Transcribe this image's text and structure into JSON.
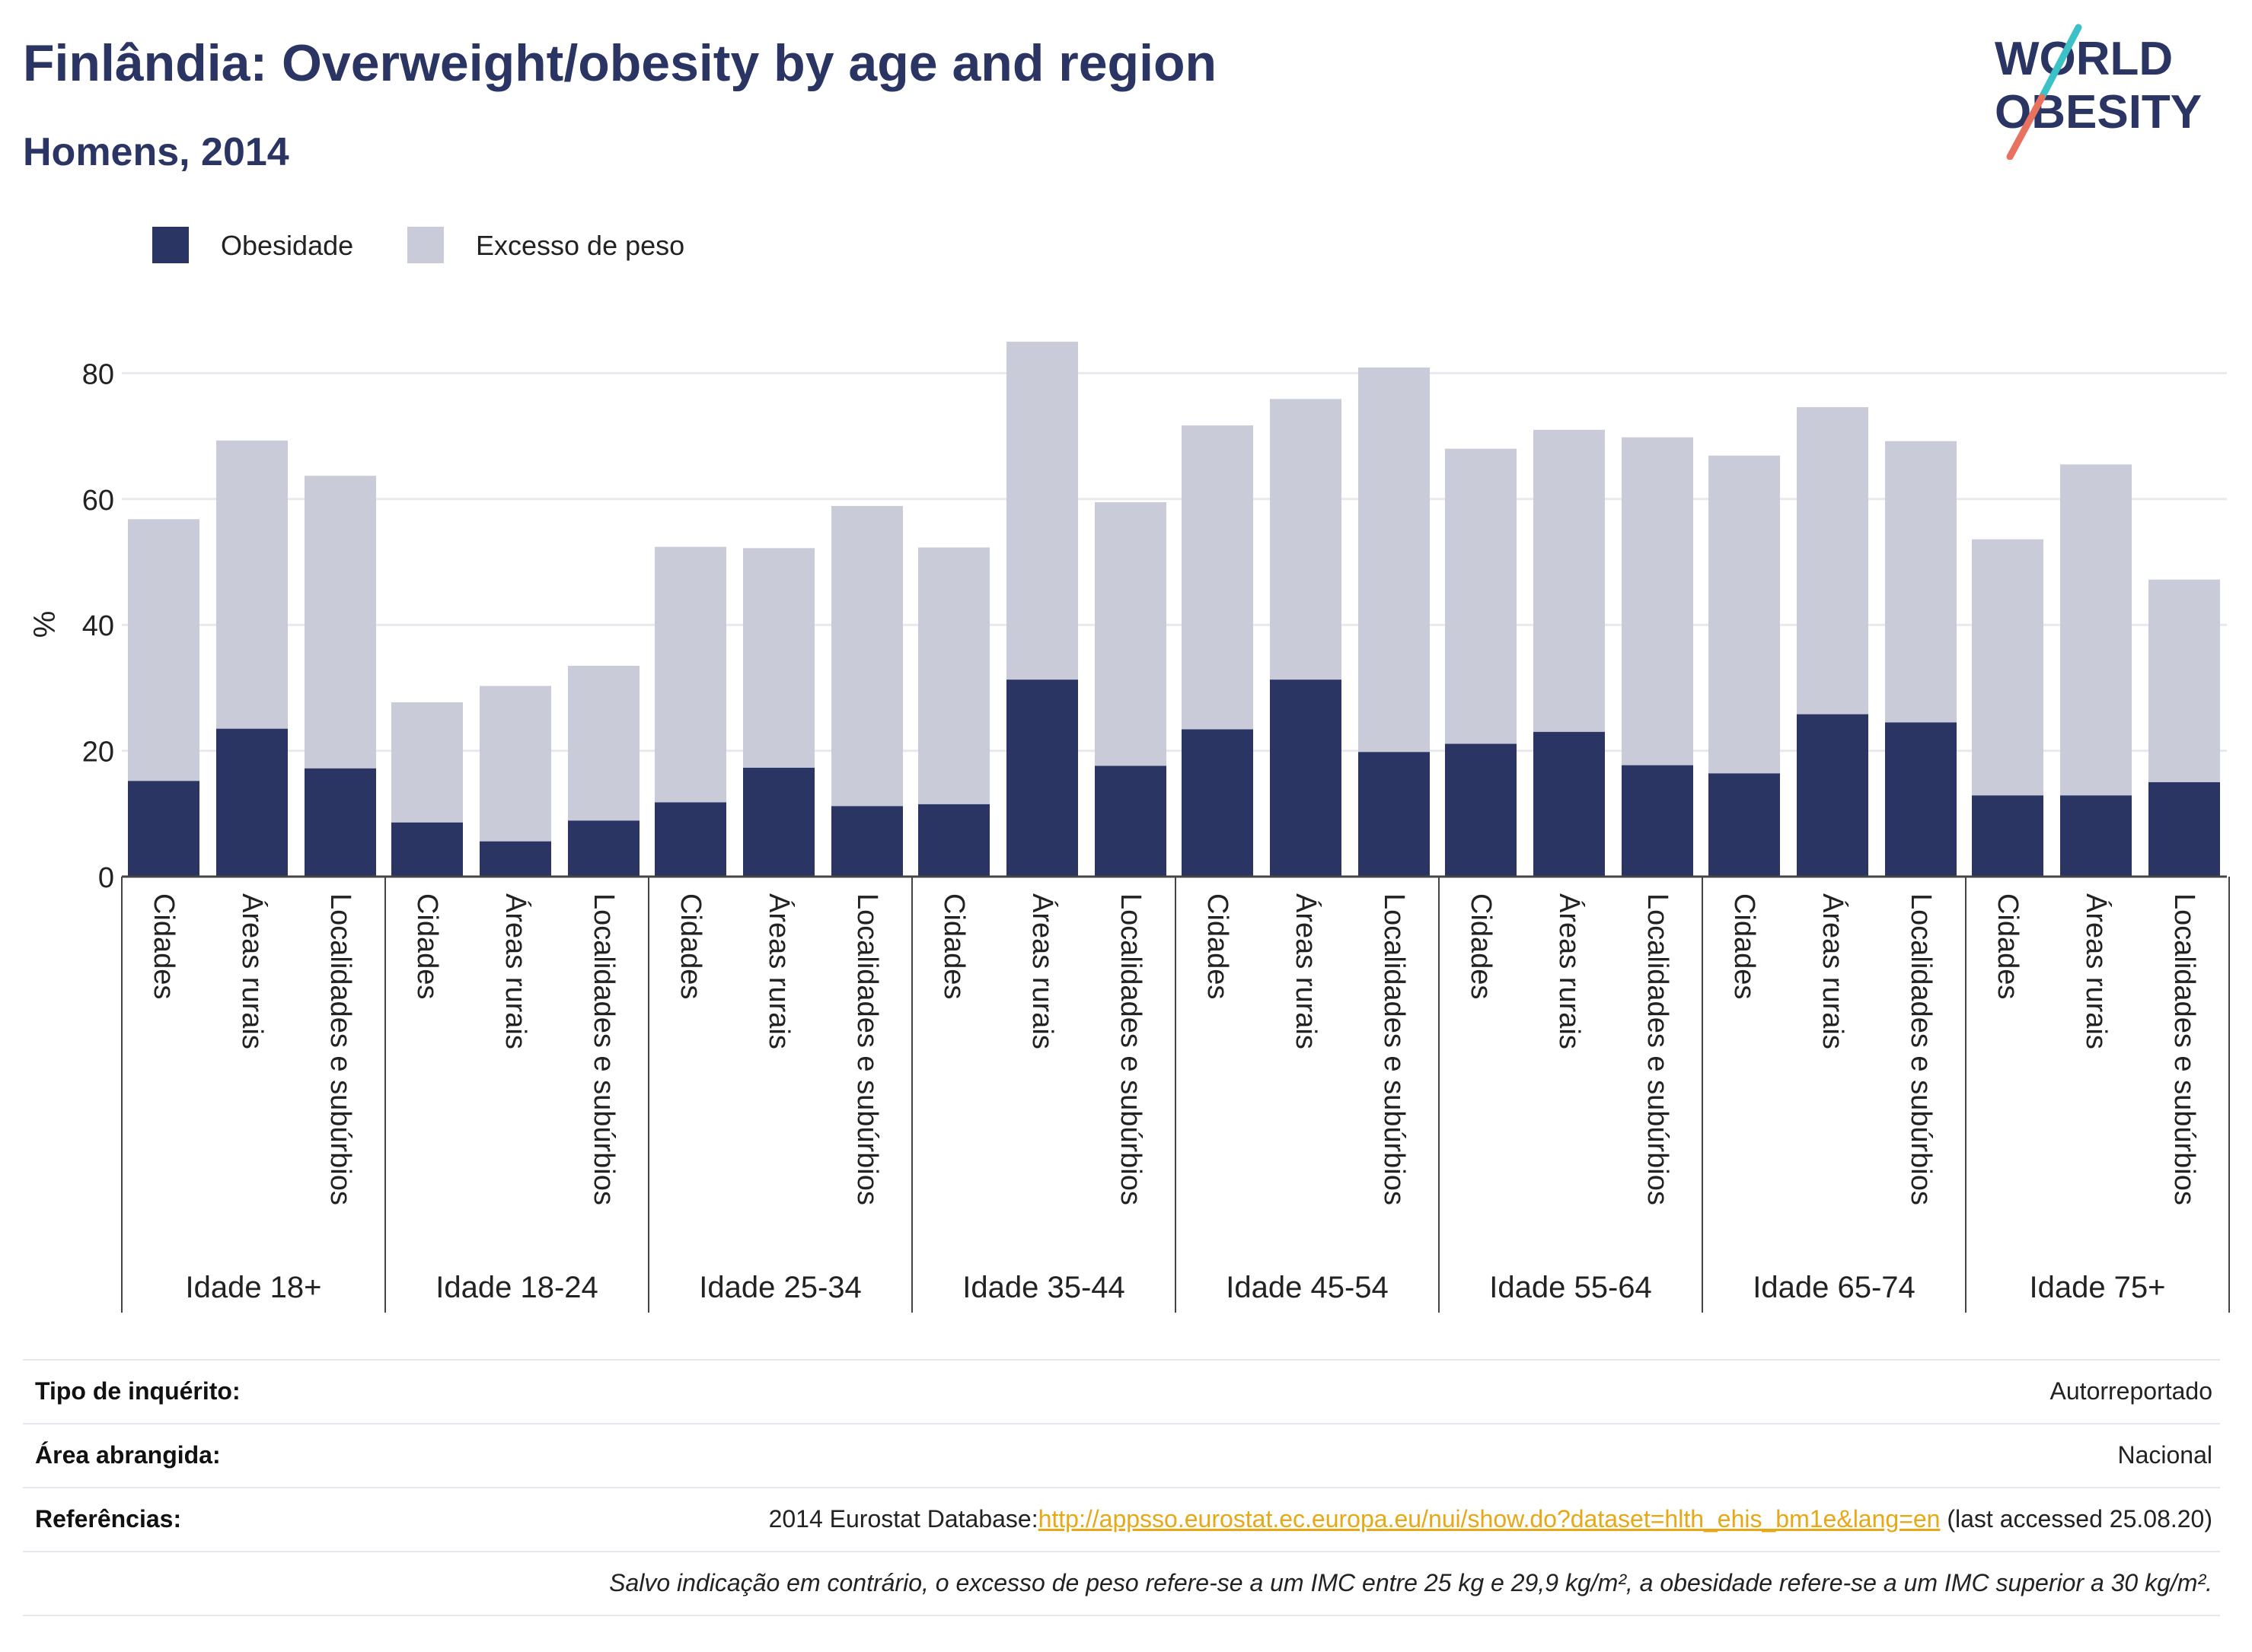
{
  "header": {
    "title": "Finlândia: Overweight/obesity by age and region",
    "subtitle": "Homens, 2014"
  },
  "logo": {
    "line1": "WORLD",
    "line2": "OBESITY",
    "accent_colors": [
      "#3cc1c6",
      "#e8715f"
    ],
    "text_color": "#2b3563"
  },
  "legend": {
    "items": [
      {
        "label": "Obesidade",
        "color": "#2b3563"
      },
      {
        "label": "Excesso de peso",
        "color": "#c9ccd8"
      }
    ]
  },
  "chart_data": {
    "type": "bar",
    "stacked": true,
    "ylabel": "%",
    "ylim": [
      0,
      85
    ],
    "yticks": [
      0,
      20,
      40,
      60,
      80
    ],
    "grid": true,
    "legend_position": "top-left",
    "categories": [
      "Cidades",
      "Áreas rurais",
      "Localidades e subúrbios"
    ],
    "groups": [
      {
        "label": "Idade 18+",
        "obesity": [
          15.2,
          23.5,
          17.2
        ],
        "overweight_total": [
          56.8,
          69.3,
          63.7
        ]
      },
      {
        "label": "Idade 18-24",
        "obesity": [
          8.6,
          5.6,
          8.9
        ],
        "overweight_total": [
          27.7,
          30.3,
          33.5
        ]
      },
      {
        "label": "Idade 25-34",
        "obesity": [
          11.8,
          17.3,
          11.2
        ],
        "overweight_total": [
          52.4,
          52.2,
          58.9
        ]
      },
      {
        "label": "Idade 35-44",
        "obesity": [
          11.5,
          31.3,
          17.6
        ],
        "overweight_total": [
          52.3,
          85.0,
          59.5
        ]
      },
      {
        "label": "Idade 45-54",
        "obesity": [
          23.4,
          31.3,
          19.8
        ],
        "overweight_total": [
          71.7,
          75.9,
          80.9
        ]
      },
      {
        "label": "Idade 55-64",
        "obesity": [
          21.1,
          23.0,
          17.7
        ],
        "overweight_total": [
          68.0,
          71.0,
          69.8
        ]
      },
      {
        "label": "Idade 65-74",
        "obesity": [
          16.4,
          25.8,
          24.5
        ],
        "overweight_total": [
          66.9,
          74.6,
          69.2
        ]
      },
      {
        "label": "Idade 75+",
        "obesity": [
          12.9,
          12.9,
          15.0
        ],
        "overweight_total": [
          53.6,
          65.5,
          47.2
        ]
      }
    ],
    "series": [
      {
        "name": "Obesidade",
        "color": "#2b3563"
      },
      {
        "name": "Excesso de peso",
        "color": "#c9ccd8"
      }
    ]
  },
  "info": {
    "survey_type_label": "Tipo de inquérito:",
    "survey_type_value": "Autorreportado",
    "area_label": "Área abrangida:",
    "area_value": "Nacional",
    "refs_label": "Referências:",
    "refs_prefix": "2014 Eurostat Database:",
    "refs_link": "http://appsso.eurostat.ec.europa.eu/nui/show.do?dataset=hlth_ehis_bm1e&lang=en",
    "refs_suffix": " (last accessed 25.08.20)",
    "note": "Salvo indicação em contrário, o excesso de peso refere-se a um IMC entre 25 kg e 29,9 kg/m², a obesidade refere-se a um IMC superior a 30 kg/m²."
  }
}
